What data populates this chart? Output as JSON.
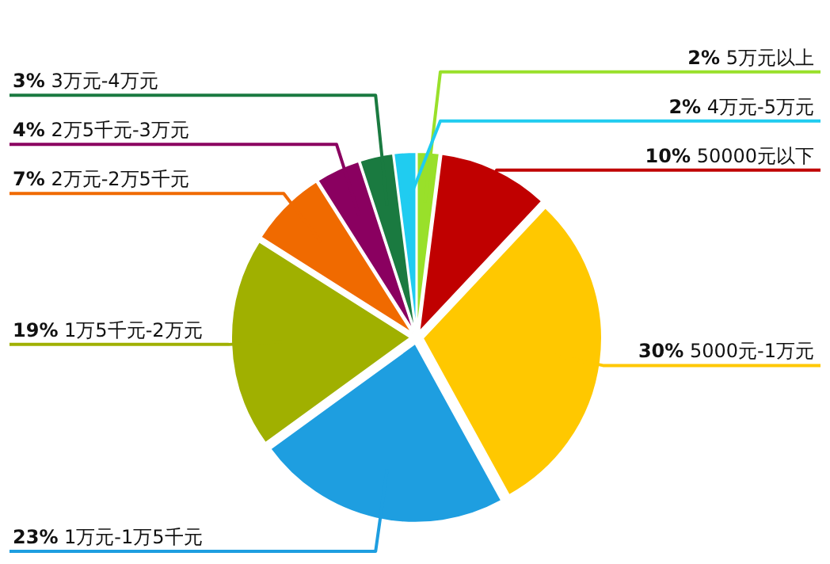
{
  "chart_data": {
    "type": "pie",
    "categories": [
      "5万元以上",
      "50000元以下",
      "5000元-1万元",
      "1万元-1万5千元",
      "1万5千元-2万元",
      "2万元-2万5千元",
      "2万5千元-3万元",
      "3万元-4万元",
      "4万元-5万元"
    ],
    "values": [
      2,
      10,
      30,
      23,
      19,
      7,
      4,
      3,
      2
    ],
    "colors": [
      "#99e02a",
      "#c00000",
      "#ffc800",
      "#1e9ee0",
      "#a0b000",
      "#f06a00",
      "#8a0060",
      "#1a7a40",
      "#20ccf0"
    ],
    "value_labels": [
      "2%",
      "10%",
      "30%",
      "23%",
      "19%",
      "7%",
      "4%",
      "3%",
      "2%"
    ]
  }
}
